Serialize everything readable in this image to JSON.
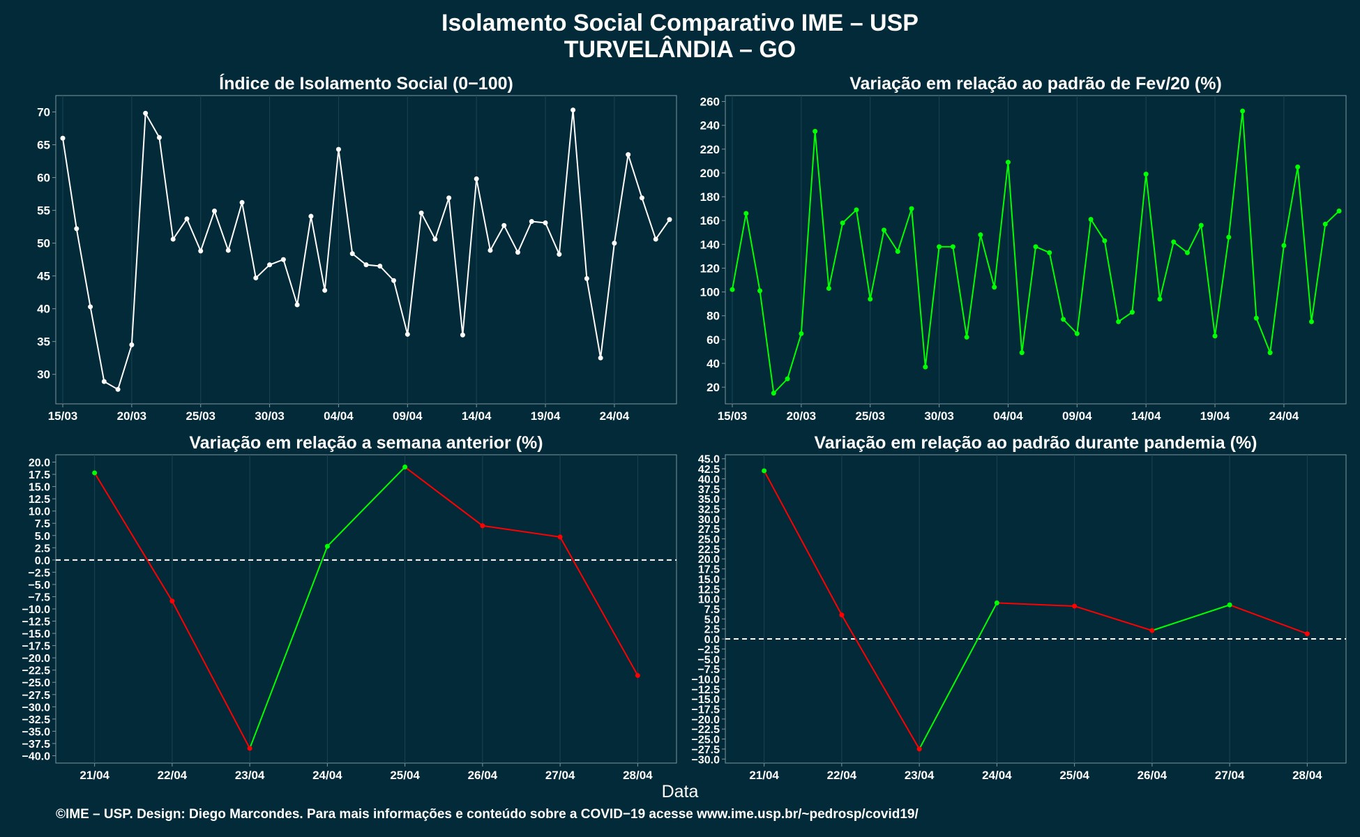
{
  "header": {
    "title": "Isolamento Social Comparativo IME – USP",
    "subtitle": "TURVELÂNDIA – GO"
  },
  "xaxis_title": "Data",
  "footer": "©IME – USP. Design: Diego Marcondes. Para mais informações e conteúdo sobre a COVID−19 acesse www.ime.usp.br/~pedrosp/covid19/",
  "colors": {
    "background": "#022a38",
    "white_line": "#ffffff",
    "green_line": "#00ff00",
    "red_line": "#ff0000"
  },
  "chart_data": [
    {
      "type": "line",
      "title": "Índice de Isolamento Social (0−100)",
      "x_start": "15/03",
      "x_ticks": [
        "15/03",
        "20/03",
        "25/03",
        "30/03",
        "04/04",
        "09/04",
        "14/04",
        "19/04",
        "24/04"
      ],
      "y_ticks": [
        30,
        35,
        40,
        45,
        50,
        55,
        60,
        65,
        70
      ],
      "ylim": [
        25.5,
        72.5
      ],
      "grid": "vertical",
      "color": "#ffffff",
      "values": [
        66.0,
        52.2,
        40.3,
        28.9,
        27.7,
        34.5,
        69.8,
        66.1,
        50.6,
        53.7,
        48.8,
        54.9,
        48.9,
        56.2,
        44.7,
        46.7,
        47.5,
        40.6,
        54.1,
        42.8,
        64.3,
        48.4,
        46.7,
        46.5,
        44.3,
        36.1,
        54.6,
        50.6,
        56.9,
        36.0,
        59.8,
        48.9,
        52.7,
        48.6,
        53.3,
        53.1,
        48.3,
        70.3,
        44.6,
        32.5,
        50.0,
        63.5,
        56.9,
        50.6,
        53.6
      ]
    },
    {
      "type": "line",
      "title": "Variação em relação ao padrão de Fev/20 (%)",
      "x_start": "15/03",
      "x_ticks": [
        "15/03",
        "20/03",
        "25/03",
        "30/03",
        "04/04",
        "09/04",
        "14/04",
        "19/04",
        "24/04"
      ],
      "y_ticks": [
        20,
        40,
        60,
        80,
        100,
        120,
        140,
        160,
        180,
        200,
        220,
        240,
        260
      ],
      "ylim": [
        6,
        265
      ],
      "grid": "vertical",
      "color": "#00ff00",
      "values": [
        102,
        166,
        101,
        15,
        27,
        65,
        235,
        103,
        158,
        169,
        94,
        152,
        134,
        170,
        37,
        138,
        138,
        62,
        148,
        104,
        209,
        49,
        138,
        133,
        77,
        65,
        161,
        143,
        75,
        83,
        199,
        94,
        142,
        133,
        156,
        63,
        146,
        252,
        78,
        49,
        139,
        205,
        75,
        157,
        168
      ]
    },
    {
      "type": "line",
      "title": "Variação em relação a semana anterior (%)",
      "categories": [
        "21/04",
        "22/04",
        "23/04",
        "24/04",
        "25/04",
        "26/04",
        "27/04",
        "28/04"
      ],
      "values": [
        17.8,
        -8.4,
        -38.5,
        2.8,
        19.0,
        7.0,
        4.7,
        -23.6
      ],
      "y_ticks": [
        20.0,
        17.5,
        15.0,
        12.5,
        10.0,
        7.5,
        5.0,
        2.5,
        0.0,
        -2.5,
        -5.0,
        -7.5,
        -10.0,
        -12.5,
        -15.0,
        -17.5,
        -20.0,
        -22.5,
        -25.0,
        -27.5,
        -30.0,
        -32.5,
        -35.0,
        -37.5,
        -40.0
      ],
      "y_tick_labels": [
        "20.0",
        "17.5",
        "15.0",
        "12.5",
        "10.0",
        "7.5",
        "5.0",
        "2.5",
        "0.0",
        "−2.5",
        "−5.0",
        "−7.5",
        "−10.0",
        "−12.5",
        "−15.0",
        "−17.5",
        "−20.0",
        "−22.5",
        "−25.0",
        "−27.5",
        "−30.0",
        "−32.5",
        "−35.0",
        "−37.5",
        "−40.0"
      ],
      "ylim": [
        -41.5,
        21.5
      ],
      "reference_line": 0,
      "colors": {
        "up": "#00ff00",
        "down": "#ff0000"
      },
      "grid": "vertical"
    },
    {
      "type": "line",
      "title": "Variação em relação ao padrão durante pandemia (%)",
      "categories": [
        "21/04",
        "22/04",
        "23/04",
        "24/04",
        "25/04",
        "26/04",
        "27/04",
        "28/04"
      ],
      "values": [
        42.0,
        6.0,
        -27.5,
        9.0,
        8.2,
        2.1,
        8.5,
        1.3
      ],
      "y_ticks": [
        45.0,
        42.5,
        40.0,
        37.5,
        35.0,
        32.5,
        30.0,
        27.5,
        25.0,
        22.5,
        20.0,
        17.5,
        15.0,
        12.5,
        10.0,
        7.5,
        5.0,
        2.5,
        0.0,
        -2.5,
        -5.0,
        -7.5,
        -10.0,
        -12.5,
        -15.0,
        -17.5,
        -20.0,
        -22.5,
        -25.0,
        -27.5,
        -30.0
      ],
      "y_tick_labels": [
        "45.0",
        "42.5",
        "40.0",
        "37.5",
        "35.0",
        "32.5",
        "30.0",
        "27.5",
        "25.0",
        "22.5",
        "20.0",
        "17.5",
        "15.0",
        "12.5",
        "10.0",
        "7.5",
        "5.0",
        "2.5",
        "0.0",
        "−2.5",
        "−5.0",
        "−7.5",
        "−10.0",
        "−12.5",
        "−15.0",
        "−17.5",
        "−20.0",
        "−22.5",
        "−25.0",
        "−27.5",
        "−30.0"
      ],
      "ylim": [
        -31.0,
        46.0
      ],
      "reference_line": 0,
      "colors": {
        "up": "#00ff00",
        "down": "#ff0000"
      },
      "grid": "vertical"
    }
  ]
}
